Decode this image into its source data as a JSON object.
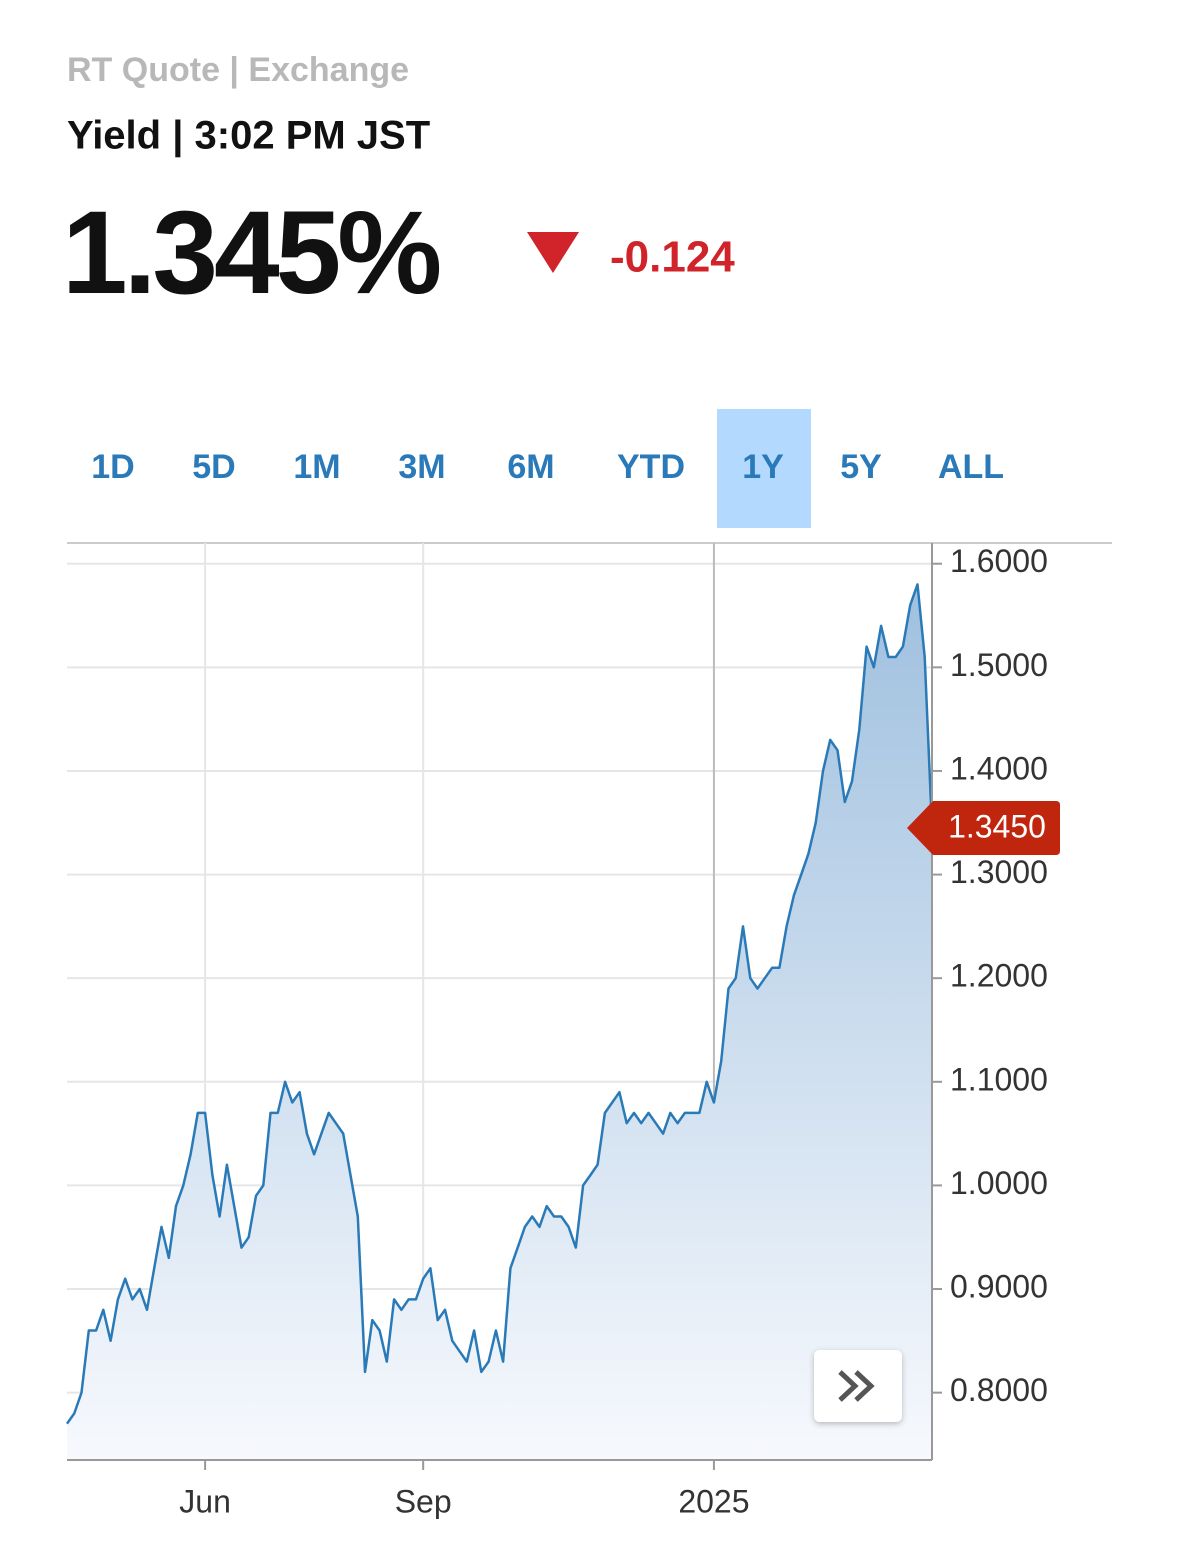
{
  "header": {
    "source": "RT Quote | Exchange",
    "subtitle": "Yield | 3:02 PM JST",
    "price": "1.345%",
    "change": "-0.124"
  },
  "tabs": [
    "1D",
    "5D",
    "1M",
    "3M",
    "6M",
    "YTD",
    "1Y",
    "5Y",
    "ALL"
  ],
  "active_tab": 6,
  "chart_data": {
    "type": "area",
    "categories": [
      null,
      null,
      null,
      null,
      null,
      null,
      null,
      null,
      null,
      null,
      null,
      null,
      null,
      null,
      null,
      null,
      null,
      null,
      null,
      "Jun",
      null,
      null,
      null,
      null,
      null,
      null,
      null,
      null,
      null,
      null,
      null,
      null,
      null,
      null,
      null,
      null,
      null,
      null,
      null,
      null,
      null,
      null,
      null,
      null,
      null,
      null,
      null,
      null,
      null,
      "Sep",
      null,
      null,
      null,
      null,
      null,
      null,
      null,
      null,
      null,
      null,
      null,
      null,
      null,
      null,
      null,
      null,
      null,
      null,
      null,
      null,
      null,
      null,
      null,
      null,
      null,
      null,
      null,
      null,
      null,
      null,
      null,
      null,
      null,
      null,
      null,
      null,
      null,
      null,
      null,
      "2025",
      null,
      null,
      null,
      null,
      null,
      null,
      null,
      null,
      null,
      null,
      null,
      null,
      null,
      null,
      null,
      null,
      null,
      null,
      null,
      null,
      null,
      null,
      null,
      null,
      null,
      null,
      null,
      null,
      null,
      null
    ],
    "series": [
      {
        "color": "#2a7ab8",
        "values": [
          0.77,
          0.78,
          0.8,
          0.86,
          0.86,
          0.88,
          0.85,
          0.89,
          0.91,
          0.89,
          0.9,
          0.88,
          0.92,
          0.96,
          0.93,
          0.98,
          1.0,
          1.03,
          1.07,
          1.07,
          1.01,
          0.97,
          1.02,
          0.98,
          0.94,
          0.95,
          0.99,
          1.0,
          1.07,
          1.07,
          1.1,
          1.08,
          1.09,
          1.05,
          1.03,
          1.05,
          1.07,
          1.06,
          1.05,
          1.01,
          0.97,
          0.82,
          0.87,
          0.86,
          0.83,
          0.89,
          0.88,
          0.89,
          0.89,
          0.91,
          0.92,
          0.87,
          0.88,
          0.85,
          0.84,
          0.83,
          0.86,
          0.82,
          0.83,
          0.86,
          0.83,
          0.92,
          0.94,
          0.96,
          0.97,
          0.96,
          0.98,
          0.97,
          0.97,
          0.96,
          0.94,
          1.0,
          1.01,
          1.02,
          1.07,
          1.08,
          1.09,
          1.06,
          1.07,
          1.06,
          1.07,
          1.06,
          1.05,
          1.07,
          1.06,
          1.07,
          1.07,
          1.07,
          1.1,
          1.08,
          1.12,
          1.19,
          1.2,
          1.25,
          1.2,
          1.19,
          1.2,
          1.21,
          1.21,
          1.25,
          1.28,
          1.3,
          1.32,
          1.35,
          1.4,
          1.43,
          1.42,
          1.37,
          1.39,
          1.44,
          1.52,
          1.5,
          1.54,
          1.51,
          1.51,
          1.52,
          1.56,
          1.58,
          1.51,
          1.345
        ]
      }
    ],
    "current": {
      "value": 1.345,
      "label": "1.3450",
      "color": "#c0260e"
    },
    "ylim": [
      0.735,
      1.62
    ],
    "yticks": [
      {
        "value": 0.8,
        "label": "0.8000"
      },
      {
        "value": 0.9,
        "label": "0.9000"
      },
      {
        "value": 1.0,
        "label": "1.0000"
      },
      {
        "value": 1.1,
        "label": "1.1000"
      },
      {
        "value": 1.2,
        "label": "1.2000"
      },
      {
        "value": 1.3,
        "label": "1.3000"
      },
      {
        "value": 1.4,
        "label": "1.4000"
      },
      {
        "value": 1.5,
        "label": "1.5000"
      },
      {
        "value": 1.6,
        "label": "1.6000"
      }
    ],
    "grid": true
  }
}
